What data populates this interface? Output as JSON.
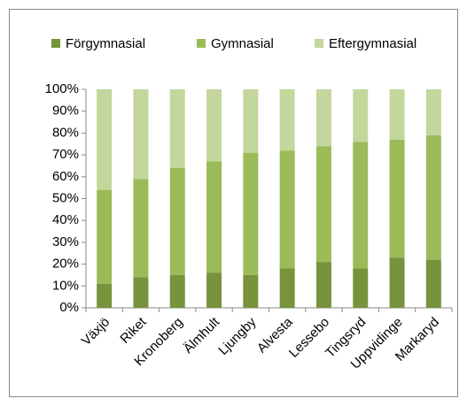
{
  "chart_data": {
    "type": "stacked_bar",
    "categories": [
      "Växjö",
      "Riket",
      "Kronoberg",
      "Älmhult",
      "Ljungby",
      "Alvesta",
      "Lessebo",
      "Tingsryd",
      "Uppvidinge",
      "Markaryd"
    ],
    "series": [
      {
        "name": "Förgymnasial",
        "color": "#77933c",
        "values": [
          11,
          14,
          15,
          16,
          15,
          18,
          21,
          18,
          23,
          22
        ]
      },
      {
        "name": "Gymnasial",
        "color": "#9bbb59",
        "values": [
          43,
          45,
          49,
          51,
          56,
          54,
          53,
          58,
          54,
          57
        ]
      },
      {
        "name": "Eftergymnasial",
        "color": "#c3d69b",
        "values": [
          46,
          41,
          36,
          33,
          29,
          28,
          26,
          24,
          23,
          21
        ]
      }
    ],
    "ylim": [
      0,
      100
    ],
    "yticks": [
      {
        "value": 0,
        "label": "0%"
      },
      {
        "value": 10,
        "label": "10%"
      },
      {
        "value": 20,
        "label": "20%"
      },
      {
        "value": 30,
        "label": "30%"
      },
      {
        "value": 40,
        "label": "40%"
      },
      {
        "value": 50,
        "label": "50%"
      },
      {
        "value": 60,
        "label": "60%"
      },
      {
        "value": 70,
        "label": "70%"
      },
      {
        "value": 80,
        "label": "80%"
      },
      {
        "value": 90,
        "label": "90%"
      },
      {
        "value": 100,
        "label": "100%"
      }
    ],
    "legend": "top",
    "grid": false
  }
}
